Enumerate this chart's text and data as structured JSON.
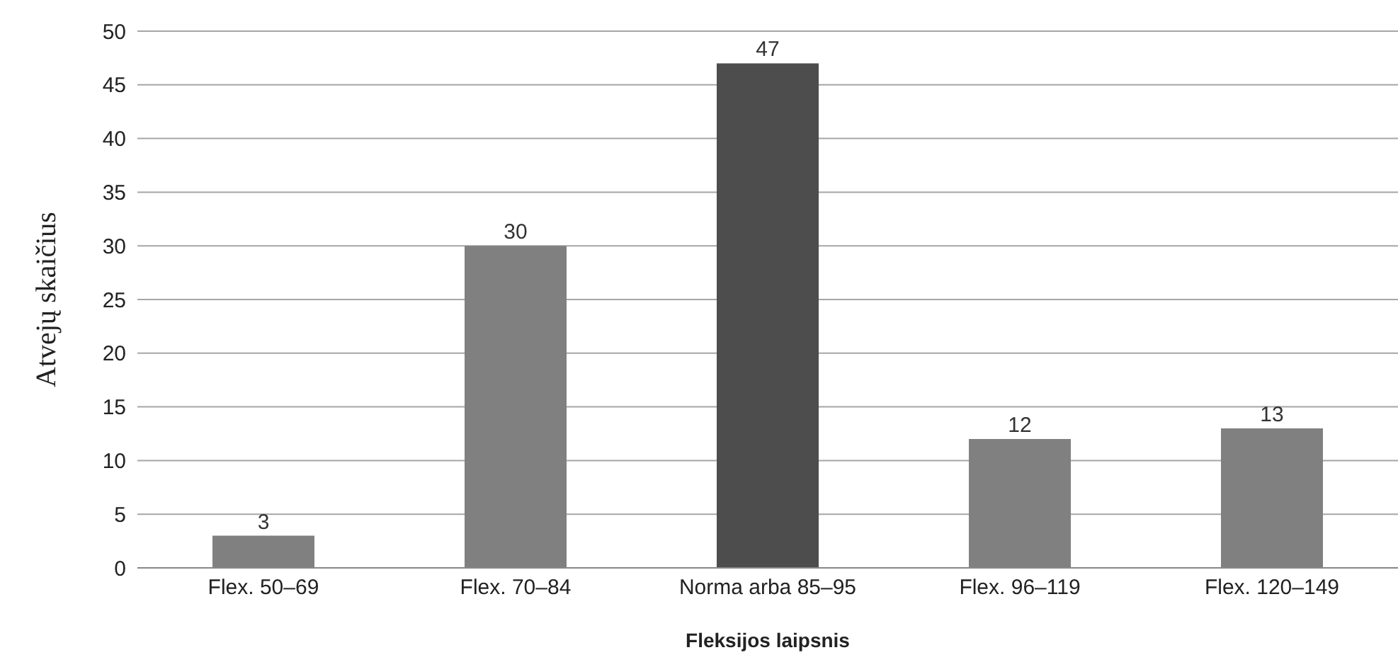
{
  "chart_data": {
    "type": "bar",
    "xlabel": "Fleksijos laipsnis",
    "ylabel": "Atvejų skaičius",
    "categories": [
      "Flex. 50–69",
      "Flex. 70–84",
      "Norma arba 85–95",
      "Flex. 96–119",
      "Flex. 120–149"
    ],
    "values": [
      3,
      30,
      47,
      12,
      13
    ],
    "colors": [
      "#808080",
      "#808080",
      "#4d4d4d",
      "#808080",
      "#808080"
    ],
    "ylim": [
      0,
      50
    ],
    "yticks": [
      0,
      5,
      10,
      15,
      20,
      25,
      30,
      35,
      40,
      45,
      50
    ],
    "grid": "y",
    "data_labels": true
  }
}
